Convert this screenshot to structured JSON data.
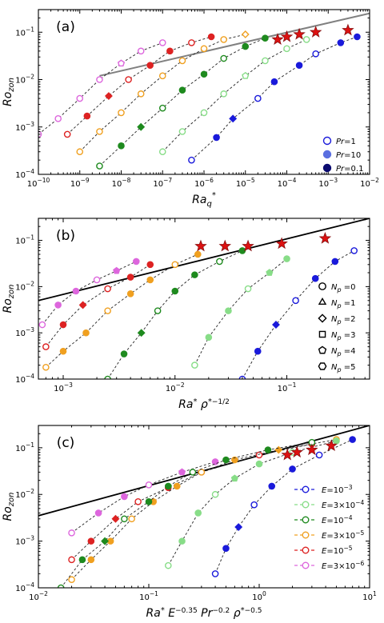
{
  "chart_data": [
    {
      "panel_label": "(a)",
      "type": "scatter",
      "title": "",
      "xlabel": "Ra_q*",
      "ylabel": "Ro_zon",
      "xscale": "log",
      "yscale": "log",
      "xlim": [
        1e-10,
        0.01
      ],
      "ylim": [
        0.0001,
        0.3
      ],
      "x_ticks": [
        {
          "v": -10
        },
        {
          "v": -9
        },
        {
          "v": -8
        },
        {
          "v": -7
        },
        {
          "v": -6
        },
        {
          "v": -5
        },
        {
          "v": -4
        },
        {
          "v": -3
        },
        {
          "v": -2
        }
      ],
      "y_ticks": [
        {
          "v": -4
        },
        {
          "v": -3
        },
        {
          "v": -2
        },
        {
          "v": -1
        }
      ],
      "legend": {
        "placement": "lower-right",
        "entries": [
          {
            "label": "Pr=1",
            "marker": "open-circle",
            "color": "#1a1adb"
          },
          {
            "label": "Pr=10",
            "marker": "filled-circle",
            "color": "#5a6fe0"
          },
          {
            "label": "Pr=0.1",
            "marker": "filled-circle",
            "color": "#0b0b70"
          }
        ]
      },
      "fit_line": {
        "color": "#808080",
        "x": [
          3e-09,
          0.01
        ],
        "y": [
          0.012,
          0.25
        ]
      },
      "series": [
        {
          "name": "E=3x10^-6",
          "color": "#dd66dd",
          "x": [
            1e-10,
            3e-10,
            1e-09,
            3e-09,
            1e-08,
            3e-08,
            1e-07
          ],
          "y": [
            0.0007,
            0.0015,
            0.004,
            0.01,
            0.022,
            0.04,
            0.06
          ]
        },
        {
          "name": "E=10^-5",
          "color": "#dd2222",
          "x": [
            5e-10,
            1.5e-09,
            5e-09,
            1.5e-08,
            5e-08,
            1.5e-07,
            5e-07,
            1.5e-06
          ],
          "y": [
            0.0007,
            0.0017,
            0.0045,
            0.01,
            0.02,
            0.04,
            0.06,
            0.08
          ]
        },
        {
          "name": "E=3x10^-5",
          "color": "#f0a020",
          "x": [
            1e-09,
            3e-09,
            1e-08,
            3e-08,
            1e-07,
            3e-07,
            1e-06,
            3e-06,
            1e-05
          ],
          "y": [
            0.0003,
            0.0008,
            0.002,
            0.005,
            0.012,
            0.025,
            0.045,
            0.07,
            0.09
          ]
        },
        {
          "name": "E=10^-4",
          "color": "#1e8a1e",
          "x": [
            3e-09,
            1e-08,
            3e-08,
            1e-07,
            3e-07,
            1e-06,
            3e-06,
            1e-05,
            3e-05
          ],
          "y": [
            0.00015,
            0.0004,
            0.001,
            0.0025,
            0.006,
            0.013,
            0.028,
            0.05,
            0.075
          ]
        },
        {
          "name": "E=3x10^-4",
          "color": "#88dd88",
          "x": [
            1e-07,
            3e-07,
            1e-06,
            3e-06,
            1e-05,
            3e-05,
            0.0001,
            0.0003
          ],
          "y": [
            0.0003,
            0.0008,
            0.002,
            0.005,
            0.012,
            0.025,
            0.045,
            0.07
          ]
        },
        {
          "name": "E=10^-3",
          "color": "#1a1adb",
          "x": [
            5e-07,
            2e-06,
            5e-06,
            2e-05,
            5e-05,
            0.0002,
            0.0005,
            0.002,
            0.005
          ],
          "y": [
            0.0002,
            0.0006,
            0.0015,
            0.004,
            0.009,
            0.02,
            0.035,
            0.06,
            0.08
          ]
        }
      ],
      "stars": {
        "color": "#dd1111",
        "x": [
          6e-05,
          0.0001,
          0.0002,
          0.0005,
          0.003
        ],
        "y": [
          0.07,
          0.08,
          0.09,
          0.1,
          0.11
        ]
      }
    },
    {
      "panel_label": "(b)",
      "type": "scatter",
      "title": "",
      "xlabel": "Ra* ρ*^-1/2",
      "ylabel": "Ro_zon",
      "xscale": "log",
      "yscale": "log",
      "xlim": [
        0.0006,
        0.55
      ],
      "ylim": [
        0.0001,
        0.3
      ],
      "x_ticks": [
        {
          "v": -3
        },
        {
          "v": -2
        },
        {
          "v": -1
        }
      ],
      "y_ticks": [
        {
          "v": -4
        },
        {
          "v": -3
        },
        {
          "v": -2
        },
        {
          "v": -1
        }
      ],
      "legend": {
        "placement": "right",
        "entries": [
          {
            "label": "Np=0",
            "marker": "circle"
          },
          {
            "label": "Np=1",
            "marker": "triangle"
          },
          {
            "label": "Np=2",
            "marker": "diamond"
          },
          {
            "label": "Np=3",
            "marker": "square"
          },
          {
            "label": "Np=4",
            "marker": "pentagon"
          },
          {
            "label": "Np=5",
            "marker": "hexagon"
          }
        ]
      },
      "fit_line": {
        "color": "#000000",
        "x": [
          0.0006,
          0.55
        ],
        "y": [
          0.005,
          0.3
        ]
      },
      "series": [
        {
          "name": "E=3x10^-6",
          "color": "#dd66dd",
          "x": [
            0.00065,
            0.0009,
            0.0013,
            0.002,
            0.003,
            0.0045
          ],
          "y": [
            0.0015,
            0.004,
            0.008,
            0.014,
            0.022,
            0.035
          ]
        },
        {
          "name": "E=10^-5",
          "color": "#dd2222",
          "x": [
            0.0007,
            0.001,
            0.0015,
            0.0025,
            0.004,
            0.006
          ],
          "y": [
            0.0005,
            0.0015,
            0.004,
            0.009,
            0.016,
            0.03
          ]
        },
        {
          "name": "E=3x10^-5",
          "color": "#f0a020",
          "x": [
            0.0007,
            0.001,
            0.0016,
            0.0025,
            0.004,
            0.006,
            0.01,
            0.016
          ],
          "y": [
            0.00018,
            0.0004,
            0.001,
            0.003,
            0.007,
            0.014,
            0.03,
            0.05
          ]
        },
        {
          "name": "E=10^-4",
          "color": "#1e8a1e",
          "x": [
            0.0025,
            0.0035,
            0.005,
            0.007,
            0.01,
            0.015,
            0.025,
            0.04
          ],
          "y": [
            0.0001,
            0.00035,
            0.001,
            0.003,
            0.008,
            0.018,
            0.035,
            0.06
          ]
        },
        {
          "name": "E=3x10^-4",
          "color": "#88dd88",
          "x": [
            0.015,
            0.02,
            0.03,
            0.045,
            0.07,
            0.1
          ],
          "y": [
            0.0002,
            0.0008,
            0.003,
            0.009,
            0.02,
            0.04
          ]
        },
        {
          "name": "E=10^-3",
          "color": "#1a1adb",
          "x": [
            0.04,
            0.055,
            0.08,
            0.12,
            0.18,
            0.27,
            0.4
          ],
          "y": [
            0.0001,
            0.0004,
            0.0015,
            0.005,
            0.015,
            0.035,
            0.06
          ]
        }
      ],
      "stars": {
        "color": "#dd1111",
        "x": [
          0.017,
          0.028,
          0.045,
          0.09,
          0.22
        ],
        "y": [
          0.075,
          0.075,
          0.075,
          0.085,
          0.11
        ]
      }
    },
    {
      "panel_label": "(c)",
      "type": "scatter",
      "title": "",
      "xlabel": "Ra* E^-0.35 Pr^-0.2 ρ*^-0.5",
      "ylabel": "Ro_zon",
      "xscale": "log",
      "yscale": "log",
      "xlim": [
        0.01,
        10
      ],
      "ylim": [
        0.0001,
        0.3
      ],
      "x_ticks": [
        {
          "v": -2
        },
        {
          "v": -1
        },
        {
          "v": 0
        },
        {
          "v": 1
        }
      ],
      "y_ticks": [
        {
          "v": -4
        },
        {
          "v": -3
        },
        {
          "v": -2
        },
        {
          "v": -1
        }
      ],
      "legend": {
        "placement": "lower-right",
        "entries": [
          {
            "label": "E=10^-3",
            "color": "#1a1adb"
          },
          {
            "label": "E=3×10^-4",
            "color": "#88dd88"
          },
          {
            "label": "E=10^-4",
            "color": "#1e8a1e"
          },
          {
            "label": "E=3×10^-5",
            "color": "#f0a020"
          },
          {
            "label": "E=10^-5",
            "color": "#dd2222"
          },
          {
            "label": "E=3×10^-6",
            "color": "#dd66dd"
          }
        ]
      },
      "fit_line": {
        "color": "#000000",
        "x": [
          0.01,
          10
        ],
        "y": [
          0.0035,
          0.3
        ]
      },
      "series": [
        {
          "name": "E=3x10^-6",
          "color": "#dd66dd",
          "x": [
            0.02,
            0.035,
            0.06,
            0.1,
            0.2,
            0.4
          ],
          "y": [
            0.0015,
            0.004,
            0.009,
            0.016,
            0.03,
            0.05
          ]
        },
        {
          "name": "E=10^-5",
          "color": "#dd2222",
          "x": [
            0.02,
            0.03,
            0.05,
            0.08,
            0.15,
            0.3,
            1.0,
            3.0
          ],
          "y": [
            0.0004,
            0.001,
            0.003,
            0.007,
            0.014,
            0.03,
            0.07,
            0.12
          ]
        },
        {
          "name": "E=3x10^-5",
          "color": "#f0a020",
          "x": [
            0.02,
            0.03,
            0.045,
            0.07,
            0.11,
            0.18,
            0.3,
            0.6,
            1.5,
            5.0
          ],
          "y": [
            0.00015,
            0.0004,
            0.001,
            0.003,
            0.007,
            0.015,
            0.03,
            0.055,
            0.09,
            0.15
          ]
        },
        {
          "name": "E=10^-4",
          "color": "#1e8a1e",
          "x": [
            0.016,
            0.025,
            0.04,
            0.06,
            0.1,
            0.15,
            0.25,
            0.5,
            1.2,
            3.0
          ],
          "y": [
            0.0001,
            0.0004,
            0.001,
            0.003,
            0.007,
            0.015,
            0.03,
            0.055,
            0.09,
            0.13
          ]
        },
        {
          "name": "E=3x10^-4",
          "color": "#88dd88",
          "x": [
            0.15,
            0.2,
            0.28,
            0.4,
            0.6,
            1.0,
            2.0,
            5.0
          ],
          "y": [
            0.0003,
            0.001,
            0.004,
            0.01,
            0.022,
            0.045,
            0.08,
            0.14
          ]
        },
        {
          "name": "E=10^-3",
          "color": "#1a1adb",
          "x": [
            0.4,
            0.5,
            0.65,
            0.9,
            1.3,
            2.0,
            3.5,
            7.0
          ],
          "y": [
            0.0002,
            0.0007,
            0.002,
            0.006,
            0.015,
            0.035,
            0.07,
            0.15
          ]
        }
      ],
      "stars": {
        "color": "#dd1111",
        "x": [
          1.8,
          2.2,
          3.0,
          4.5
        ],
        "y": [
          0.07,
          0.08,
          0.09,
          0.11
        ]
      }
    }
  ]
}
